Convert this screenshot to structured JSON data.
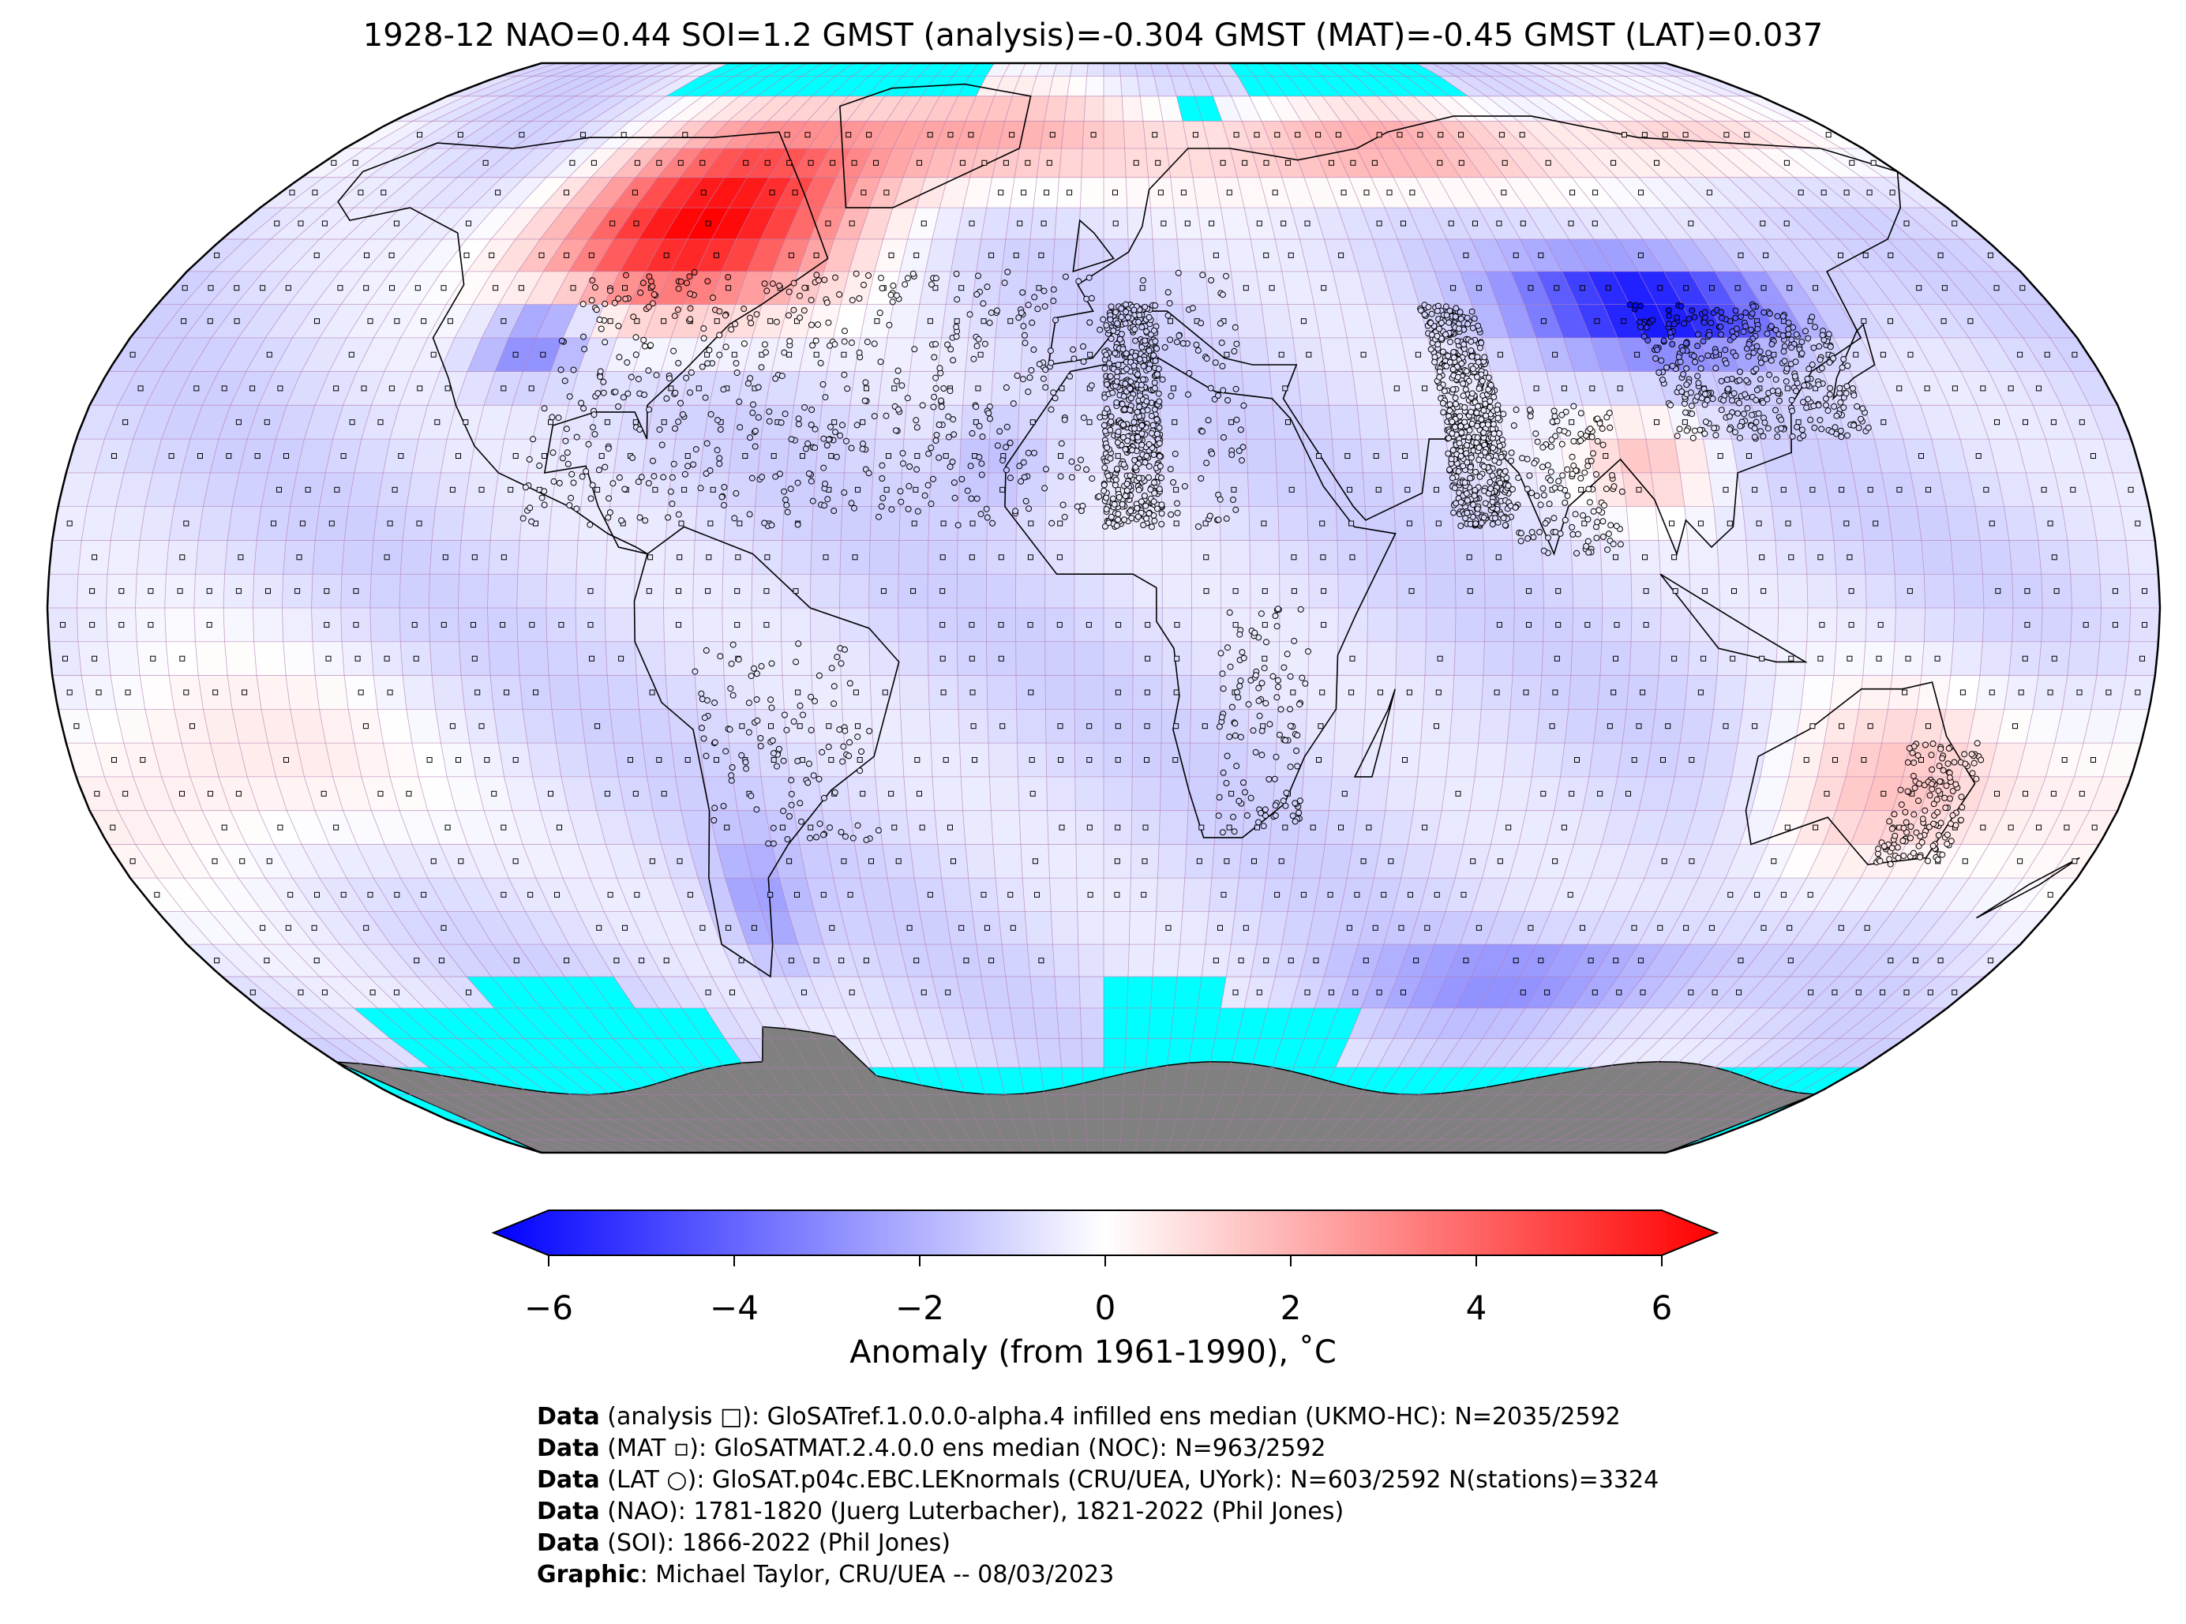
{
  "title": "1928-12 NAO=0.44 SOI=1.2 GMST (analysis)=-0.304 GMST (MAT)=-0.45 GMST (LAT)=0.037",
  "colors": {
    "cold": "#0000ff",
    "warm": "#ff0000",
    "neutral": "#ffffff",
    "missing": "#00ffff",
    "land_ice": "#808080",
    "grid": "#b07ab0"
  },
  "map": {
    "projection": "robinson",
    "grid_resolution_deg": 5,
    "features": [
      "coastlines-icon",
      "country-borders-icon",
      "station-markers-icon"
    ]
  },
  "colorbar": {
    "min": -6,
    "max": 6,
    "ticks": [
      "−6",
      "−4",
      "−2",
      "0",
      "2",
      "4",
      "6"
    ],
    "tick_values": [
      -6,
      -4,
      -2,
      0,
      2,
      4,
      6
    ],
    "label": "Anomaly (from 1961-1990), ˚C",
    "extend": "both"
  },
  "credits": [
    {
      "bold": "Data",
      "text": " (analysis □): GloSATref.1.0.0.0-alpha.4 infilled ens median (UKMO-HC): N=2035/2592"
    },
    {
      "bold": "Data",
      "text": " (MAT ▫): GloSATMAT.2.4.0.0 ens median (NOC): N=963/2592"
    },
    {
      "bold": "Data",
      "text": " (LAT ○): GloSAT.p04c.EBC.LEKnormals (CRU/UEA, UYork): N=603/2592 N(stations)=3324"
    },
    {
      "bold": "Data",
      "text": " (NAO): 1781-1820 (Juerg Luterbacher), 1821-2022 (Phil Jones)"
    },
    {
      "bold": "Data",
      "text": " (SOI): 1866-2022 (Phil Jones)"
    },
    {
      "bold": "Graphic",
      "text": ": Michael Taylor, CRU/UEA -- 08/03/2023"
    }
  ]
}
